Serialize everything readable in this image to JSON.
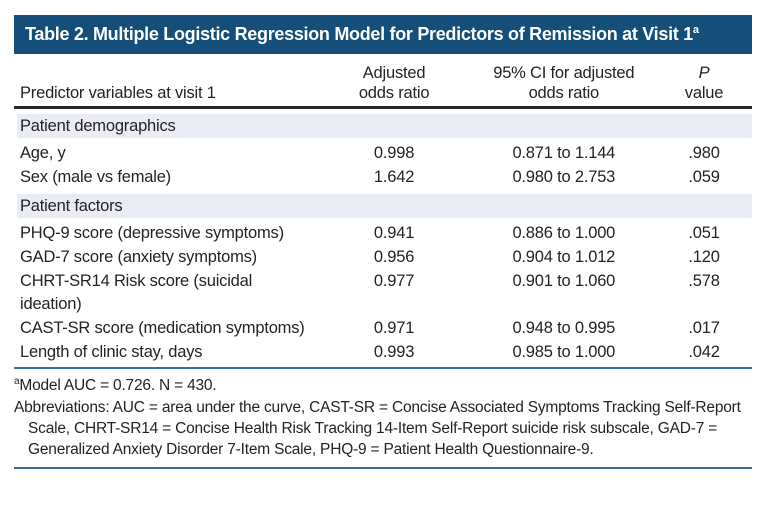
{
  "table": {
    "title": "Table 2. Multiple Logistic Regression Model for Predictors of Remission at Visit 1",
    "title_superscript": "a",
    "columns": [
      {
        "line1": "",
        "line2": "Predictor variables at visit 1"
      },
      {
        "line1": "Adjusted",
        "line2": "odds ratio"
      },
      {
        "line1": "95% CI for adjusted",
        "line2": "odds ratio"
      },
      {
        "line1": "P",
        "line2": "value"
      }
    ],
    "sections": [
      {
        "header": "Patient demographics",
        "rows": [
          {
            "predictor": "Age, y",
            "aor": "0.998",
            "ci": "0.871 to 1.144",
            "p": ".980"
          },
          {
            "predictor": "Sex (male vs female)",
            "aor": "1.642",
            "ci": "0.980 to 2.753",
            "p": ".059"
          }
        ]
      },
      {
        "header": "Patient factors",
        "rows": [
          {
            "predictor": "PHQ-9 score (depressive symptoms)",
            "aor": "0.941",
            "ci": "0.886 to 1.000",
            "p": ".051"
          },
          {
            "predictor": "GAD-7 score (anxiety symptoms)",
            "aor": "0.956",
            "ci": "0.904 to 1.012",
            "p": ".120"
          },
          {
            "predictor": "CHRT-SR14 Risk score (suicidal ideation)",
            "aor": "0.977",
            "ci": "0.901 to 1.060",
            "p": ".578"
          },
          {
            "predictor": "CAST-SR score (medication symptoms)",
            "aor": "0.971",
            "ci": "0.948 to 0.995",
            "p": ".017"
          },
          {
            "predictor": "Length of clinic stay, days",
            "aor": "0.993",
            "ci": "0.985 to 1.000",
            "p": ".042"
          }
        ]
      }
    ],
    "footnotes": {
      "model_marker": "a",
      "model_text": "Model AUC = 0.726. N = 430.",
      "abbreviations": "Abbreviations: AUC = area under the curve, CAST-SR = Concise Associated Symptoms Tracking Self-Report Scale, CHRT-SR14 = Concise Health Risk Tracking 14-Item Self-Report suicide risk subscale, GAD-7 = Generalized Anxiety Disorder 7-Item Scale, PHQ-9 = Patient Health Questionnaire-9."
    }
  },
  "colors": {
    "header_bg": "#164e7a",
    "section_bg": "#e9ebf5",
    "rule_blue": "#3a6ea8",
    "rule_dark": "#2b2829",
    "text": "#262223"
  }
}
